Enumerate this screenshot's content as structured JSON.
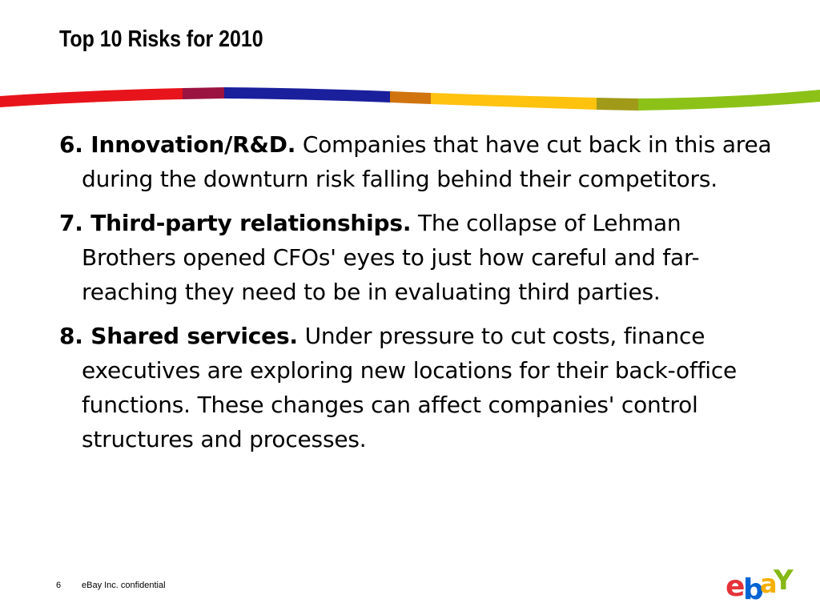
{
  "slide": {
    "title": "Top 10 Risks for 2010",
    "risks": [
      {
        "heading": "6. Innovation/R&D.",
        "body": "Companies that have cut back in this area during the downturn risk falling behind their competitors."
      },
      {
        "heading": "7. Third-party relationships.",
        "body": "The collapse of Lehman Brothers opened CFOs' eyes to just how careful and far-reaching they need to be in evaluating third parties."
      },
      {
        "heading": "8. Shared services.",
        "body": "Under pressure to cut costs, finance executives are exploring new locations for their back-office functions. These changes can affect companies' control structures and processes."
      }
    ]
  },
  "footer": {
    "page_number": "6",
    "confidential_label": "eBay Inc. confidential"
  },
  "logo": {
    "letters": [
      "e",
      "b",
      "a",
      "Y"
    ],
    "colors": [
      "#e53238",
      "#0064d2",
      "#f5af02",
      "#86b817"
    ]
  },
  "stripe_colors": [
    "#e8141b",
    "#9b1340",
    "#1a1f9c",
    "#d1740f",
    "#ffc20e",
    "#a09a18",
    "#8cc218"
  ]
}
